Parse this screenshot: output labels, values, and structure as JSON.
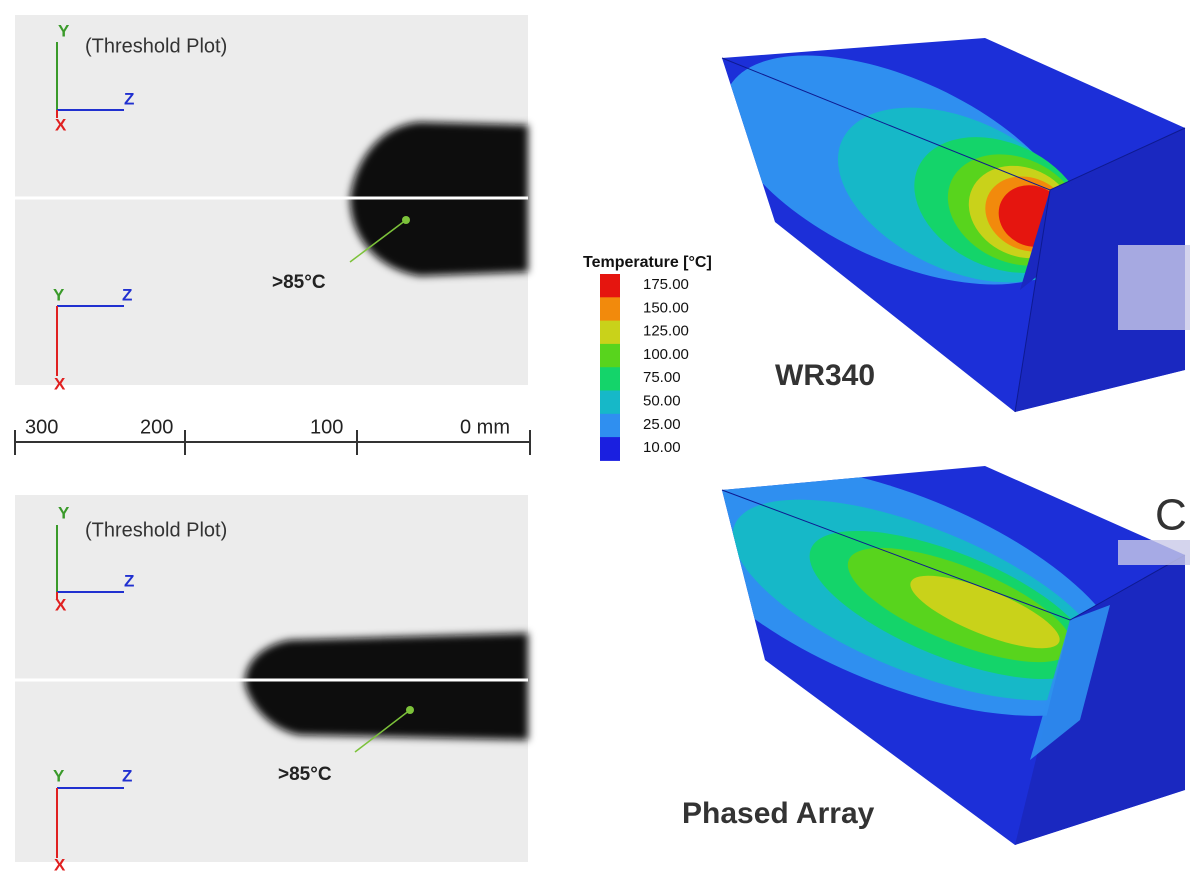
{
  "panels": [
    {
      "label": "(Threshold Plot)",
      "annotation": ">85°C",
      "triads": [
        {
          "y": "Y",
          "z": "Z",
          "x": "X"
        },
        {
          "y": "Y",
          "z": "Z",
          "x": "X"
        }
      ]
    },
    {
      "label": "(Threshold Plot)",
      "annotation": ">85°C",
      "triads": [
        {
          "y": "Y",
          "z": "Z",
          "x": "X"
        },
        {
          "y": "Y",
          "z": "Z",
          "x": "X"
        }
      ]
    }
  ],
  "scale_bar": {
    "ticks": [
      "300",
      "200",
      "100",
      "0 mm"
    ]
  },
  "legend": {
    "title": "Temperature [°C]",
    "items": [
      {
        "label": "175.00",
        "color": "#e5150f"
      },
      {
        "label": "150.00",
        "color": "#f28a0c"
      },
      {
        "label": "125.00",
        "color": "#c9d21a"
      },
      {
        "label": "100.00",
        "color": "#58d41d"
      },
      {
        "label": "75.00",
        "color": "#14d46a"
      },
      {
        "label": "50.00",
        "color": "#16b8c8"
      },
      {
        "label": "25.00",
        "color": "#2f8ff0"
      },
      {
        "label": "10.00",
        "color": "#1a1fe0"
      }
    ]
  },
  "models": [
    {
      "label": "WR340"
    },
    {
      "label": "Phased Array"
    }
  ],
  "edge_text": "C"
}
